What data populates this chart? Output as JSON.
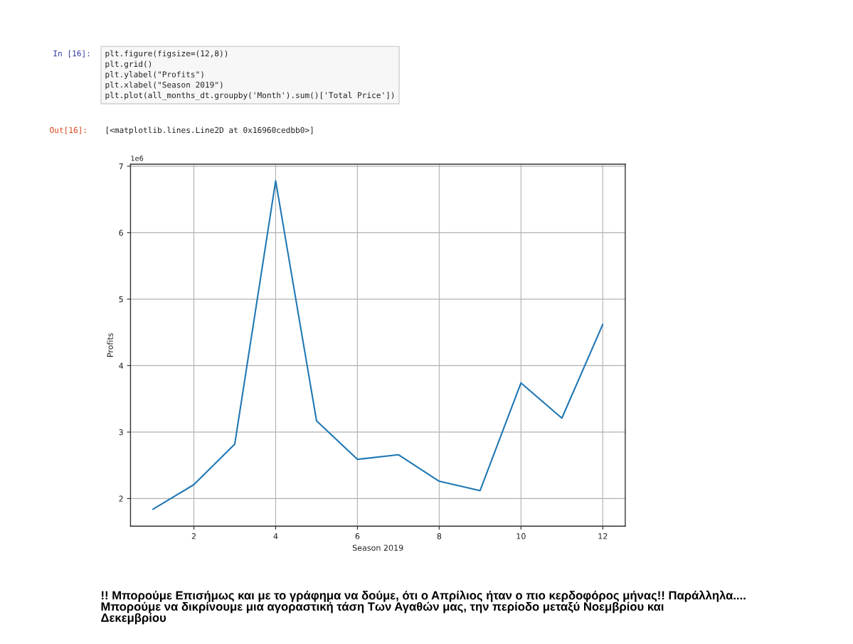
{
  "chart_data": {
    "type": "line",
    "xlabel": "Season 2019",
    "ylabel": "Profits",
    "x": [
      1,
      2,
      3,
      4,
      5,
      6,
      7,
      8,
      9,
      10,
      11,
      12
    ],
    "series": [
      {
        "color": "#1f77b4",
        "values": [
          1.84,
          2.21,
          2.82,
          6.78,
          3.17,
          2.59,
          2.66,
          2.26,
          2.12,
          3.74,
          3.21,
          4.62
        ]
      }
    ],
    "xlim": [
      0.45,
      12.55
    ],
    "xticks": [
      2,
      4,
      6,
      8,
      10,
      12
    ],
    "ylim": [
      1.585,
      7.03
    ],
    "yticks": [
      2,
      3,
      4,
      5,
      6,
      7
    ],
    "grid": true,
    "marker": "none",
    "line_style": "solid",
    "annotations": [
      "In [16]:",
      "plt.figure(figsize=(12,8))\nplt.grid()\nplt.ylabel(\"Profits\")\nplt.xlabel(\"Season 2019\")\nplt.plot(all_months_dt.groupby('Month').sum()['Total Price'])",
      "Out[16]:",
      "[<matplotlib.lines.Line2D at 0x16960cedbb0>]",
      "1e6",
      "!! Μπορούμε Επισήμως και με το γράφημα να δούμε, ότι ο Απρίλιος ήταν ο πιο κερδοφόρος μήνας!! Παράλληλα....\nΜπορούμε να δικρίνουμε μια αγοραστική τάση Των Αγαθών μας, την περίοδο μεταξύ Νοεμβρίου και\nΔεκεμβρίου"
    ]
  }
}
